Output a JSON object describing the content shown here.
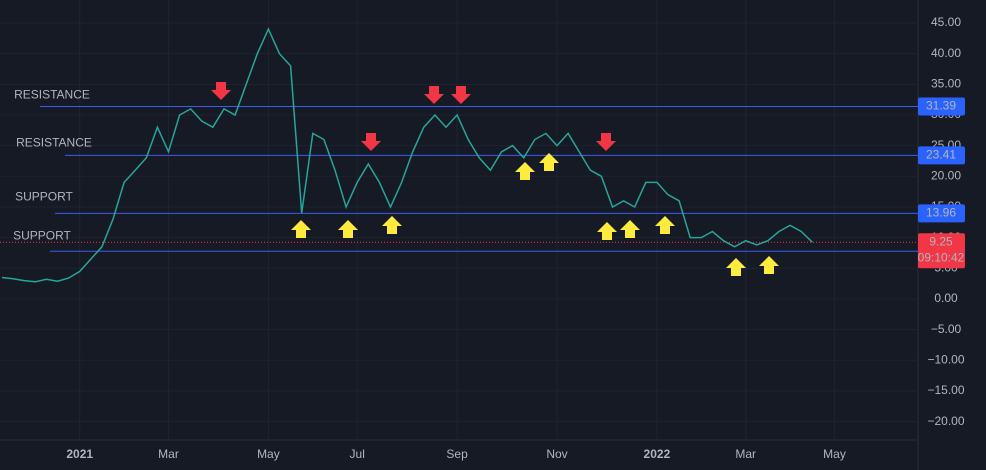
{
  "chart_data": {
    "type": "line",
    "color": "#26a69a",
    "categories": [
      null,
      null,
      null,
      null,
      null,
      null,
      null,
      "2021",
      null,
      null,
      null,
      null,
      null,
      null,
      null,
      "Mar",
      null,
      null,
      null,
      null,
      null,
      null,
      null,
      null,
      "May",
      null,
      null,
      null,
      null,
      null,
      null,
      null,
      "Jul",
      null,
      null,
      null,
      null,
      null,
      null,
      null,
      null,
      "Sep",
      null,
      null,
      null,
      null,
      null,
      null,
      null,
      null,
      "Nov",
      null,
      null,
      null,
      null,
      null,
      null,
      null,
      null,
      "2022",
      null,
      null,
      null,
      null,
      null,
      null,
      null,
      "Mar",
      null,
      null,
      null,
      null,
      null,
      null,
      null,
      "May"
    ],
    "values": [
      3.5,
      3.3,
      3.0,
      2.8,
      3.2,
      2.9,
      3.4,
      4.5,
      6.5,
      8.5,
      13,
      19,
      21,
      23,
      28,
      24,
      30,
      31,
      29,
      28,
      31,
      30,
      35,
      40,
      44,
      40,
      38,
      14,
      27,
      26,
      21,
      15,
      19,
      22,
      19,
      15,
      19,
      24,
      28,
      30,
      28,
      30,
      26,
      23,
      21,
      24,
      25,
      23,
      26,
      27,
      25,
      27,
      24,
      21,
      20,
      15,
      16,
      15,
      19,
      19,
      17,
      16,
      10,
      10,
      11,
      9.5,
      8.5,
      9.5,
      8.8,
      9.5,
      11,
      12,
      11,
      9.25,
      null,
      null
    ],
    "ylim": [
      -23,
      48.75
    ],
    "yticks": [
      {
        "value": -20,
        "label": "−20.00"
      },
      {
        "value": -15,
        "label": "−15.00"
      },
      {
        "value": -10,
        "label": "−10.00"
      },
      {
        "value": -5,
        "label": "−5.00"
      },
      {
        "value": 0,
        "label": "0.00"
      },
      {
        "value": 5,
        "label": "5.00"
      },
      {
        "value": 10,
        "label": "10.00"
      },
      {
        "value": 15,
        "label": "15.00"
      },
      {
        "value": 20,
        "label": "20.00"
      },
      {
        "value": 25,
        "label": "25.00"
      },
      {
        "value": 30,
        "label": "30.00"
      },
      {
        "value": 35,
        "label": "35.00"
      },
      {
        "value": 40,
        "label": "40.00"
      },
      {
        "value": 45,
        "label": "45.00"
      }
    ],
    "grid": true,
    "levels": [
      {
        "label": "RESISTANCE",
        "value": 31.39
      },
      {
        "label": "RESISTANCE",
        "value": 23.41
      },
      {
        "label": "SUPPORT",
        "value": 13.96
      },
      {
        "label": "SUPPORT",
        "value": 7.77
      }
    ],
    "last_price": 9.25,
    "countdown": "09:10:42"
  }
}
